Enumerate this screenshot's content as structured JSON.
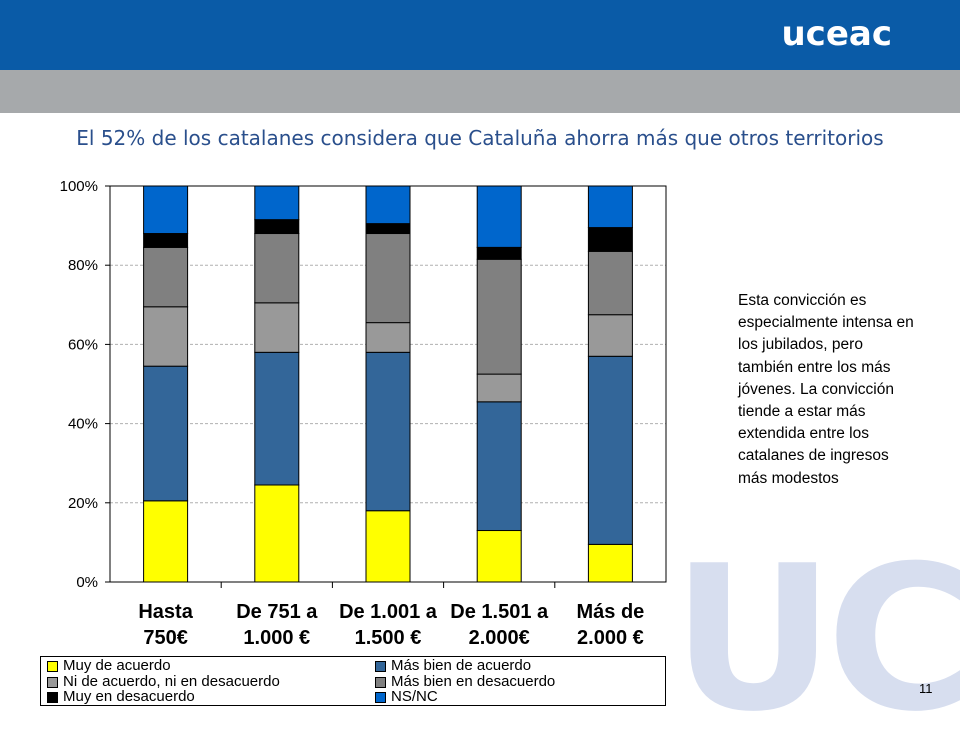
{
  "header": {
    "logo": "uceac"
  },
  "watermark": "UC",
  "title": "El 52% de los catalanes considera que Cataluña ahorra más que otros territorios",
  "side_note": "Esta convicción es especialmente intensa en los jubilados, pero también entre los más jóvenes. La convicción tiende a estar más extendida entre los catalanes de ingresos más modestos",
  "page_number": "11",
  "chart_data": {
    "type": "bar",
    "stacked": true,
    "categories": [
      [
        "Hasta",
        "750€"
      ],
      [
        "De 751 a",
        "1.000 €"
      ],
      [
        "De 1.001 a",
        "1.500 €"
      ],
      [
        "De 1.501 a",
        "2.000€"
      ],
      [
        "Más de",
        "2.000 €"
      ]
    ],
    "ylim": [
      0,
      100
    ],
    "yticks": [
      "0%",
      "20%",
      "40%",
      "60%",
      "80%",
      "100%"
    ],
    "grid": true,
    "legend_position": "bottom",
    "series": [
      {
        "name": "Muy de acuerdo",
        "color": "#ffff00",
        "values": [
          20.5,
          24.5,
          18.0,
          13.0,
          9.5
        ]
      },
      {
        "name": "Más bien de acuerdo",
        "color": "#336699",
        "values": [
          34.0,
          33.5,
          40.0,
          32.5,
          47.5
        ]
      },
      {
        "name": "Ni de acuerdo, ni en desacuerdo",
        "color": "#999999",
        "values": [
          15.0,
          12.5,
          7.5,
          7.0,
          10.5
        ]
      },
      {
        "name": "Más bien en desacuerdo",
        "color": "#808080",
        "values": [
          15.0,
          17.5,
          22.5,
          29.0,
          16.0
        ]
      },
      {
        "name": "Muy en desacuerdo",
        "color": "#000000",
        "values": [
          3.5,
          3.5,
          2.5,
          3.0,
          6.0
        ]
      },
      {
        "name": "NS/NC",
        "color": "#0066cc",
        "values": [
          12.0,
          8.5,
          9.5,
          15.5,
          10.5
        ]
      }
    ]
  }
}
